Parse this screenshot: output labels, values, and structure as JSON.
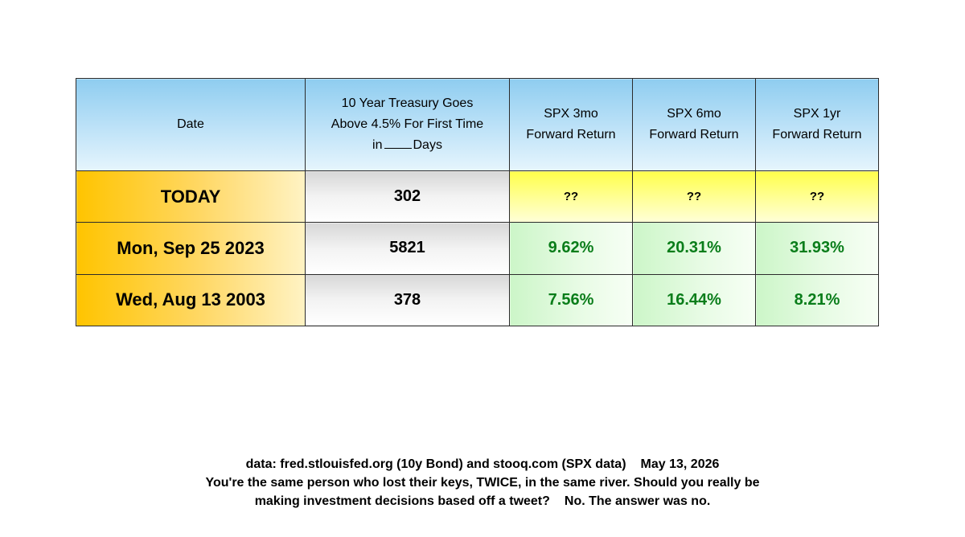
{
  "chart_data": {
    "type": "table",
    "columns": [
      "Date",
      [
        "10 Year Treasury Goes",
        "Above 4.5% For First Time",
        "in",
        "Days"
      ],
      [
        "SPX 3mo",
        "Forward Return"
      ],
      [
        "SPX 6mo",
        "Forward Return"
      ],
      [
        "SPX 1yr",
        "Forward Return"
      ]
    ],
    "rows": [
      {
        "date": "TODAY",
        "days": "302",
        "ret_3mo": "??",
        "ret_6mo": "??",
        "ret_1yr": "??"
      },
      {
        "date": "Mon, Sep 25 2023",
        "days": "5821",
        "ret_3mo": "9.62%",
        "ret_6mo": "20.31%",
        "ret_1yr": "31.93%"
      },
      {
        "date": "Wed, Aug 13 2003",
        "days": "378",
        "ret_3mo": "7.56%",
        "ret_6mo": "16.44%",
        "ret_1yr": "8.21%"
      }
    ],
    "colors": {
      "header": "#8fcdf0",
      "date_column": "#ffc400",
      "days_column": "#d7d7d7",
      "today_returns": "#ffff4a",
      "returns": "#ccf6c8",
      "return_text": "#0a7d1a"
    }
  },
  "footer": {
    "source": "data: fred.stlouisfed.org (10y Bond) and stooq.com (SPX data)",
    "date": "May 13, 2026",
    "line2": "You're the same person who lost their keys, TWICE, in the same river. Should you really be",
    "line3a": "making investment decisions based off a tweet?",
    "line3b": "No. The answer was no."
  }
}
